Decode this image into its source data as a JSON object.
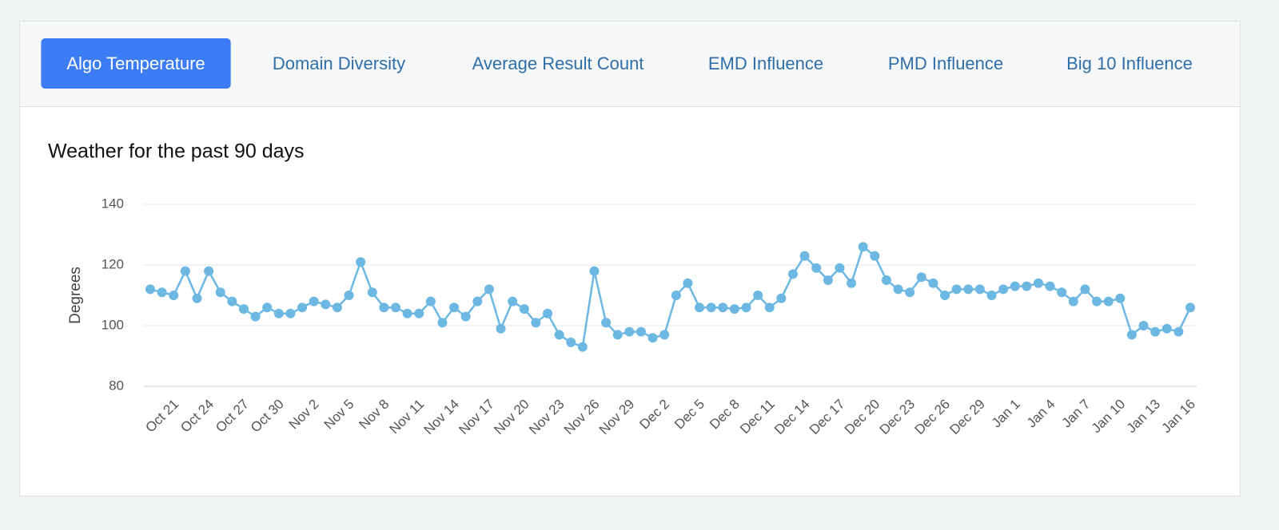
{
  "tabs": [
    {
      "label": "Algo Temperature",
      "active": true
    },
    {
      "label": "Domain Diversity",
      "active": false
    },
    {
      "label": "Average Result Count",
      "active": false
    },
    {
      "label": "EMD Influence",
      "active": false
    },
    {
      "label": "PMD Influence",
      "active": false
    },
    {
      "label": "Big 10 Influence",
      "active": false
    }
  ],
  "chart_data": {
    "type": "line",
    "title": "Weather for the past 90 days",
    "y_label": "Degrees",
    "color": "#6cb8e3",
    "grid": true,
    "markers": true,
    "ylim": [
      80,
      140
    ],
    "yticks": [
      80,
      100,
      120,
      140
    ],
    "categories": [
      null,
      null,
      "Oct 21",
      null,
      null,
      "Oct 24",
      null,
      null,
      "Oct 27",
      null,
      null,
      "Oct 30",
      null,
      null,
      "Nov 2",
      null,
      null,
      "Nov 5",
      null,
      null,
      "Nov 8",
      null,
      null,
      "Nov 11",
      null,
      null,
      "Nov 14",
      null,
      null,
      "Nov 17",
      null,
      null,
      "Nov 20",
      null,
      null,
      "Nov 23",
      null,
      null,
      "Nov 26",
      null,
      null,
      "Nov 29",
      null,
      null,
      "Dec 2",
      null,
      null,
      "Dec 5",
      null,
      null,
      "Dec 8",
      null,
      null,
      "Dec 11",
      null,
      null,
      "Dec 14",
      null,
      null,
      "Dec 17",
      null,
      null,
      "Dec 20",
      null,
      null,
      "Dec 23",
      null,
      null,
      "Dec 26",
      null,
      null,
      "Dec 29",
      null,
      null,
      "Jan 1",
      null,
      null,
      "Jan 4",
      null,
      null,
      "Jan 7",
      null,
      null,
      "Jan 10",
      null,
      null,
      "Jan 13",
      null,
      null,
      "Jan 16"
    ],
    "values": [
      112,
      111,
      110,
      118,
      109,
      118,
      111,
      108,
      105.5,
      103,
      106,
      104,
      104,
      106,
      108,
      107,
      106,
      110,
      121,
      111,
      106,
      106,
      104,
      104,
      108,
      101,
      106,
      103,
      108,
      112,
      99,
      108,
      105.5,
      101,
      104,
      97,
      94.5,
      93,
      118,
      101,
      97,
      98,
      98,
      96,
      97,
      110,
      114,
      106,
      106,
      106,
      105.5,
      106,
      110,
      106,
      109,
      117,
      123,
      119,
      115,
      119,
      114,
      126,
      123,
      115,
      112,
      111,
      116,
      114,
      110,
      112,
      112,
      112,
      110,
      112,
      113,
      113,
      114,
      113,
      111,
      108,
      112,
      108,
      108,
      109,
      97,
      100,
      98,
      99,
      98,
      106
    ]
  }
}
